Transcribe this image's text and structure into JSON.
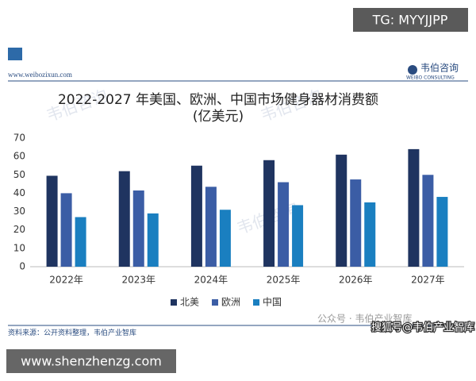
{
  "top_badge": "TG: MYYJJPP",
  "header": {
    "site": "www.weibozixun.com",
    "brand": "韦伯咨询",
    "brand_en": "WEIBO CONSULTING"
  },
  "watermark": "韦伯咨询",
  "chart_data": {
    "type": "bar",
    "title": "2022-2027 年美国、欧洲、中国市场健身器材消费额",
    "subtitle": "(亿美元)",
    "categories": [
      "2022年",
      "2023年",
      "2024年",
      "2025年",
      "2026年",
      "2027年"
    ],
    "series": [
      {
        "name": "北美",
        "color": "#1f3460",
        "values": [
          49.5,
          52,
          55,
          58,
          61,
          64
        ]
      },
      {
        "name": "欧洲",
        "color": "#3b5da5",
        "values": [
          40,
          41.5,
          43.5,
          46,
          47.5,
          50
        ]
      },
      {
        "name": "中国",
        "color": "#1a7fc0",
        "values": [
          27,
          29,
          31,
          33.5,
          35,
          38
        ]
      }
    ],
    "ylim": [
      0,
      70
    ],
    "yticks": [
      0,
      10,
      20,
      30,
      40,
      50,
      60,
      70
    ],
    "grid": false,
    "legend": "bottom"
  },
  "footer": {
    "source": "资料来源：公开资料整理，韦伯产业智库",
    "wechat": "公众号 · 韦伯产业智库",
    "sohu": "搜狐号@韦伯产业智库"
  },
  "bottom_badge": "www.shenzhenzg.com"
}
